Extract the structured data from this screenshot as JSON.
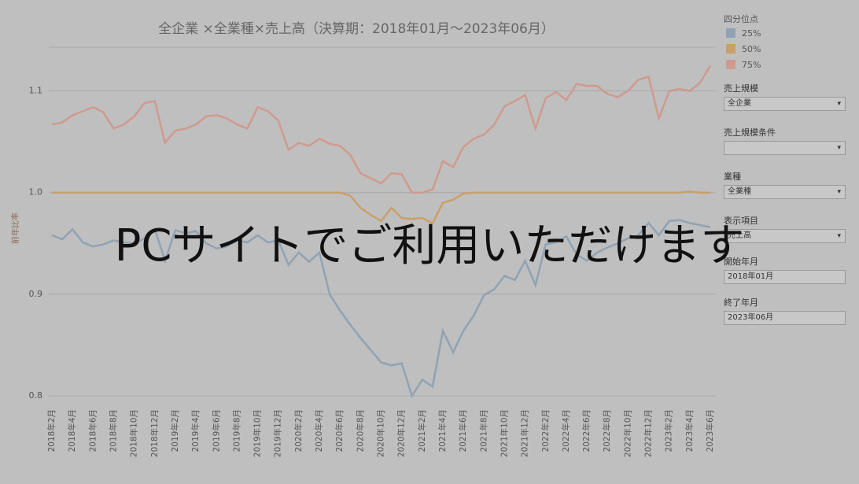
{
  "chart_data": {
    "type": "line",
    "title": "全企業 ×全業種×売上高（決算期：2018年01月～2023年06月）",
    "y_label": "前年比率",
    "categories": [
      "2018年2月",
      null,
      "2018年4月",
      null,
      "2018年6月",
      null,
      "2018年8月",
      null,
      "2018年10月",
      null,
      "2018年12月",
      null,
      "2019年2月",
      null,
      "2019年4月",
      null,
      "2019年6月",
      null,
      "2019年8月",
      null,
      "2019年10月",
      null,
      "2019年12月",
      null,
      "2020年2月",
      null,
      "2020年4月",
      null,
      "2020年6月",
      null,
      "2020年8月",
      null,
      "2020年10月",
      null,
      "2020年12月",
      null,
      "2021年2月",
      null,
      "2021年4月",
      null,
      "2021年6月",
      null,
      "2021年8月",
      null,
      "2021年10月",
      null,
      "2021年12月",
      null,
      "2022年2月",
      null,
      "2022年4月",
      null,
      "2022年6月",
      null,
      "2022年8月",
      null,
      "2022年10月",
      null,
      "2022年12月",
      null,
      "2023年2月",
      null,
      "2023年4月",
      null,
      "2023年6月"
    ],
    "ylim": [
      0.783,
      1.143
    ],
    "yticks": [
      0.8,
      0.9,
      {
        "value": 1,
        "label": "1.0"
      },
      1.1
    ],
    "grid": true,
    "legend_title": "四分位点",
    "series": [
      {
        "name": "25%",
        "color": "#8fa3b4",
        "values": [
          0.958,
          0.954,
          0.964,
          0.951,
          0.947,
          0.949,
          0.953,
          0.951,
          0.95,
          0.955,
          0.964,
          0.933,
          0.963,
          0.96,
          0.962,
          0.95,
          0.945,
          0.947,
          0.953,
          0.951,
          0.958,
          0.951,
          0.953,
          0.929,
          0.941,
          0.932,
          0.941,
          0.9,
          0.884,
          0.87,
          0.857,
          0.845,
          0.833,
          0.83,
          0.832,
          0.8,
          0.816,
          0.809,
          0.864,
          0.843,
          0.864,
          0.879,
          0.899,
          0.905,
          0.918,
          0.914,
          0.933,
          0.909,
          0.949,
          0.951,
          0.957,
          0.939,
          0.933,
          0.941,
          0.946,
          0.95,
          0.955,
          0.958,
          0.97,
          0.958,
          0.972,
          0.973,
          0.97,
          0.968,
          0.966
        ]
      },
      {
        "name": "50%",
        "color": "#c9a06a",
        "values": [
          1,
          1,
          1,
          1,
          1,
          1,
          1,
          1,
          1,
          1,
          1,
          1,
          1,
          1,
          1,
          1,
          1,
          1,
          1,
          1,
          1,
          1,
          1,
          1,
          1,
          1,
          1,
          1,
          1,
          0.997,
          0.985,
          0.978,
          0.972,
          0.985,
          0.975,
          0.974,
          0.975,
          0.97,
          0.99,
          0.993,
          0.999,
          1,
          1,
          1,
          1,
          1,
          1,
          1,
          1,
          1,
          1,
          1,
          1,
          1,
          1,
          1,
          1,
          1,
          1,
          1,
          1,
          1,
          1.001,
          1,
          1
        ]
      },
      {
        "name": "75%",
        "color": "#d09a8e",
        "values": [
          1.067,
          1.069,
          1.076,
          1.08,
          1.084,
          1.079,
          1.063,
          1.067,
          1.075,
          1.088,
          1.09,
          1.049,
          1.061,
          1.063,
          1.067,
          1.075,
          1.076,
          1.073,
          1.067,
          1.063,
          1.084,
          1.08,
          1.071,
          1.042,
          1.049,
          1.046,
          1.053,
          1.048,
          1.046,
          1.037,
          1.019,
          1.014,
          1.009,
          1.019,
          1.018,
          1.0,
          1.0,
          1.003,
          1.031,
          1.025,
          1.045,
          1.053,
          1.057,
          1.067,
          1.085,
          1.09,
          1.096,
          1.063,
          1.093,
          1.099,
          1.091,
          1.107,
          1.105,
          1.105,
          1.097,
          1.094,
          1.1,
          1.111,
          1.114,
          1.073,
          1.1,
          1.102,
          1.1,
          1.108,
          1.125
        ]
      }
    ]
  },
  "filters": [
    {
      "label": "売上規模",
      "value": "全企業",
      "dropdown": true
    },
    {
      "label": "売上規模条件",
      "dropdown": true
    },
    {
      "label": "業種",
      "value": "全業種",
      "dropdown": true
    },
    {
      "label": "表示項目",
      "value": "売上高",
      "dropdown": true
    },
    {
      "label": "開始年月",
      "value": "2018年01月",
      "dropdown": false
    },
    {
      "label": "終了年月",
      "value": "2023年06月",
      "dropdown": false
    }
  ],
  "overlay": "PCサイトでご利用いただけます"
}
